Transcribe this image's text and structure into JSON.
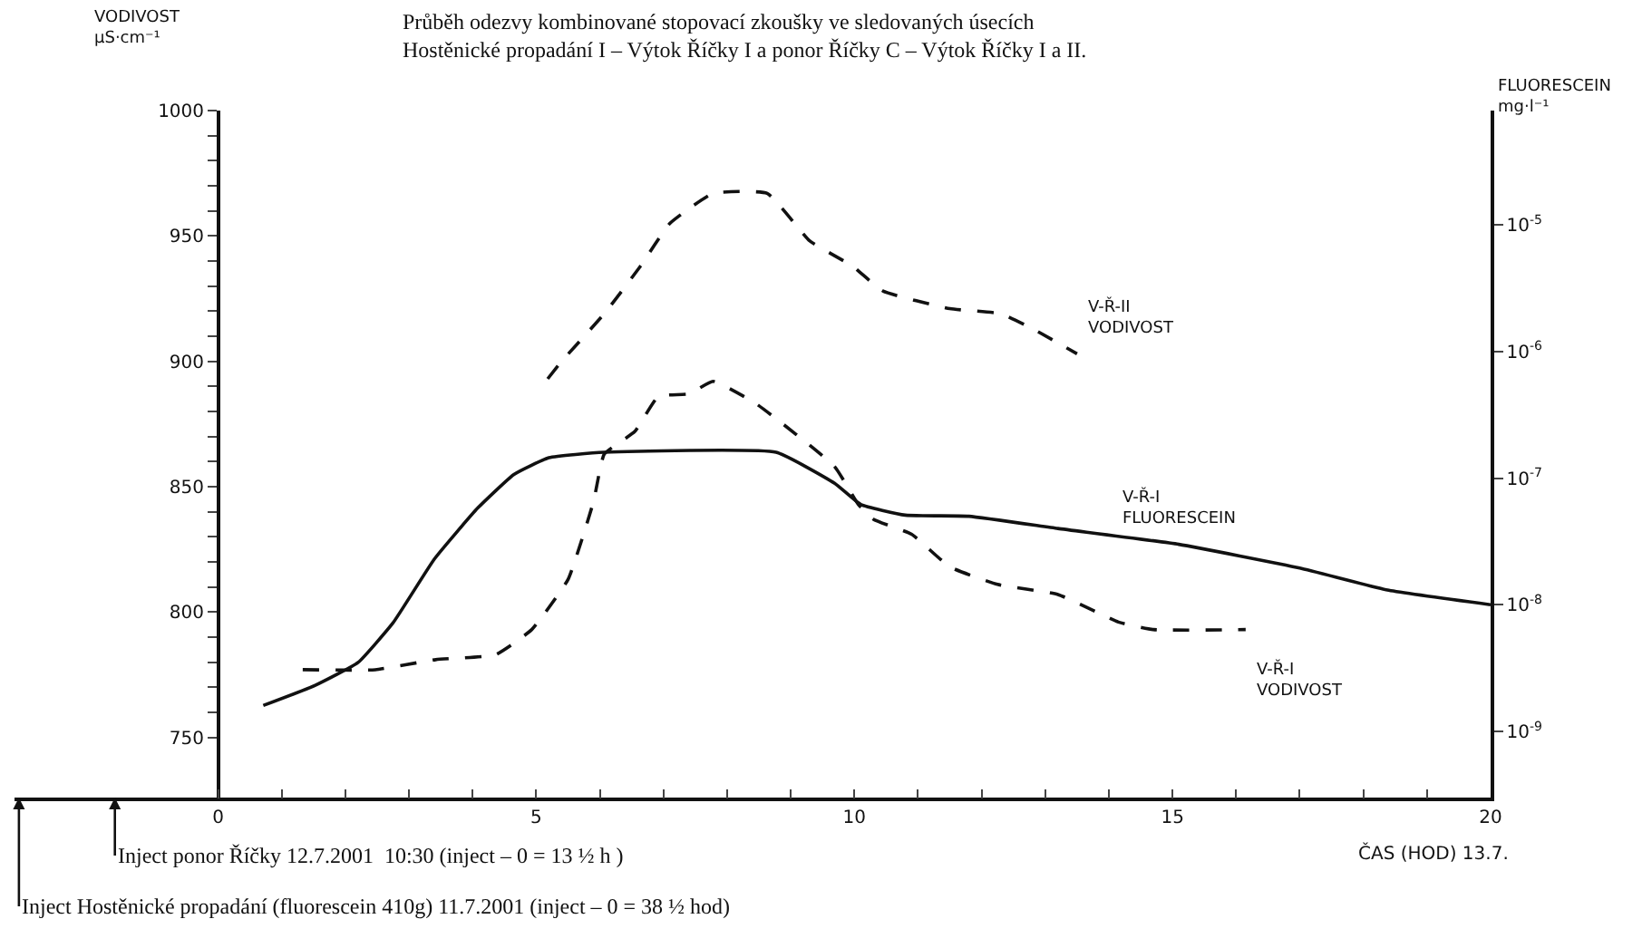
{
  "chart_data": {
    "type": "line",
    "title": "Průběh odezvy kombinované stopovací zkoušky ve sledovaných úsecích\nHostěnické propadání I – Výtok Říčky I a ponor Říčky C – Výtok Říčky I a II.",
    "xlabel": "ČAS (HOD) 13.7.",
    "ylabel": "VODIVOST\nµS·cm⁻¹",
    "y2label": "FLUORESCEIN\nmg·l⁻¹",
    "xlim": [
      -3.2,
      20
    ],
    "xticks": [
      0,
      {
        "value": 1,
        "label": null
      },
      {
        "value": 2,
        "label": null
      },
      {
        "value": 3,
        "label": null
      },
      {
        "value": 4,
        "label": null
      },
      5,
      {
        "value": 6,
        "label": null
      },
      {
        "value": 7,
        "label": null
      },
      {
        "value": 8,
        "label": null
      },
      {
        "value": 9,
        "label": null
      },
      10,
      {
        "value": 11,
        "label": null
      },
      {
        "value": 12,
        "label": null
      },
      {
        "value": 13,
        "label": null
      },
      {
        "value": 14,
        "label": null
      },
      15,
      {
        "value": 16,
        "label": null
      },
      {
        "value": 17,
        "label": null
      },
      {
        "value": 18,
        "label": null
      },
      {
        "value": 19,
        "label": null
      },
      20
    ],
    "ylim": [
      726,
      1000
    ],
    "yticks": [
      750,
      {
        "value": 760,
        "label": null
      },
      {
        "value": 770,
        "label": null
      },
      {
        "value": 780,
        "label": null
      },
      {
        "value": 790,
        "label": null
      },
      800,
      {
        "value": 810,
        "label": null
      },
      {
        "value": 820,
        "label": null
      },
      {
        "value": 830,
        "label": null
      },
      {
        "value": 840,
        "label": null
      },
      850,
      {
        "value": 860,
        "label": null
      },
      {
        "value": 870,
        "label": null
      },
      {
        "value": 880,
        "label": null
      },
      {
        "value": 890,
        "label": null
      },
      900,
      {
        "value": 910,
        "label": null
      },
      {
        "value": 920,
        "label": null
      },
      {
        "value": 930,
        "label": null
      },
      {
        "value": 940,
        "label": null
      },
      950,
      {
        "value": 960,
        "label": null
      },
      {
        "value": 970,
        "label": null
      },
      {
        "value": 980,
        "label": null
      },
      {
        "value": 990,
        "label": null
      },
      1000
    ],
    "log": "y2",
    "y2lim": [
      3e-10,
      8e-05
    ],
    "y2ticks": [
      {
        "value": 1e-09,
        "label": "10$^{-9}$"
      },
      {
        "value": 1e-08,
        "label": "10$^{-8}$"
      },
      {
        "value": 1e-07,
        "label": "10$^{-7}$"
      },
      {
        "value": 1e-06,
        "label": "10$^{-6}$"
      },
      {
        "value": 1e-05,
        "label": "10$^{-5}$"
      }
    ],
    "legend": false,
    "marker": "none",
    "series": [
      {
        "name": "V-Ř-I\nFLUORESCEIN",
        "color": "#111111",
        "line_style": "solid",
        "axis": "y2",
        "x": [
          0.71,
          1.52,
          2.2,
          2.75,
          3.4,
          4.08,
          4.65,
          5.2,
          6.07,
          8.77,
          9.69,
          10.1,
          10.8,
          11.8,
          13.2,
          15.1,
          17.0,
          18.4,
          20
        ],
        "values": [
          1.6e-09,
          2.3e-09,
          3.5e-09,
          7.2e-09,
          2.3e-08,
          5.8e-08,
          1.07e-07,
          1.45e-07,
          1.6e-07,
          1.6e-07,
          9.1e-08,
          6.2e-08,
          5.1e-08,
          5e-08,
          4e-08,
          3e-08,
          1.95e-08,
          1.3e-08,
          1e-08
        ]
      },
      {
        "name": "V-Ř-I\nVODIVOST",
        "color": "#111111",
        "line_style": "dashed",
        "x": [
          1.33,
          2.47,
          3.42,
          4.36,
          4.93,
          5.5,
          5.9,
          6.07,
          6.55,
          6.92,
          7.4,
          7.78,
          8.46,
          9.69,
          10.06,
          10.3,
          10.9,
          11.5,
          12.25,
          13.2,
          14.15,
          14.7,
          16.15
        ],
        "values": [
          777,
          777,
          781,
          783,
          793,
          813,
          844,
          863,
          872,
          886,
          887,
          892,
          883,
          858,
          843,
          837,
          831,
          818,
          811,
          807,
          796,
          793,
          793
        ]
      },
      {
        "name": "V-Ř-II\nVODIVOST",
        "color": "#111111",
        "line_style": "dashed",
        "x": [
          5.18,
          5.4,
          6.07,
          6.64,
          7.1,
          7.78,
          8.63,
          9.3,
          9.97,
          10.45,
          11.5,
          12.3,
          12.8,
          13.5
        ],
        "values": [
          893,
          900,
          919,
          938,
          955,
          967,
          967,
          948,
          938,
          928,
          921,
          919,
          913,
          903
        ]
      }
    ],
    "annotations": [
      "Inject ponor Říčky 12.7.2001  10:30 (inject – 0 = 13 ½ h )",
      "Inject Hostěnické propadání (fluorescein 410g) 11.7.2001 (inject – 0 = 38 ½ hod)"
    ]
  }
}
